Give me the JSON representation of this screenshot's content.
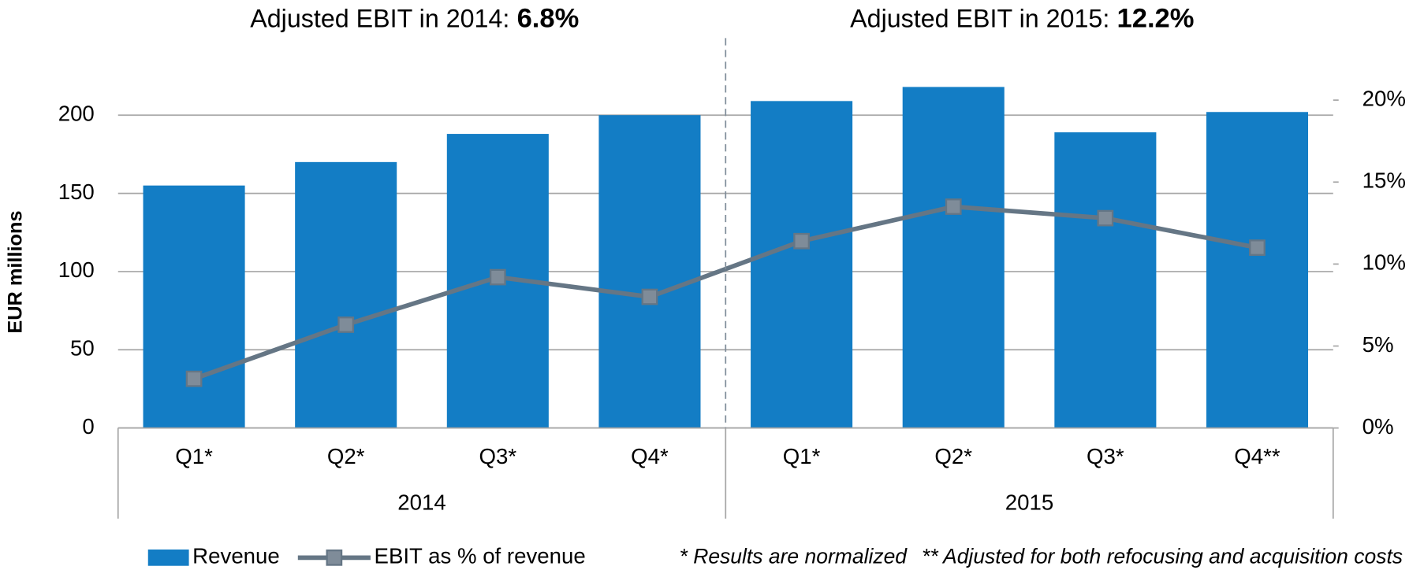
{
  "chart_data": {
    "type": "bar",
    "panels": [
      {
        "label": "2014",
        "title": "Adjusted EBIT in 2014:",
        "highlight": "6.8%"
      },
      {
        "label": "2015",
        "title": "Adjusted EBIT in 2015:",
        "highlight": "12.2%"
      }
    ],
    "categories": [
      "Q1*",
      "Q2*",
      "Q3*",
      "Q4*",
      "Q1*",
      "Q2*",
      "Q3*",
      "Q4**"
    ],
    "series": [
      {
        "name": "Revenue",
        "type": "bar",
        "color": "#137dc5",
        "values": [
          155,
          170,
          188,
          200,
          209,
          218,
          189,
          202
        ]
      },
      {
        "name": "EBIT as % of revenue",
        "type": "line",
        "axis": "y2",
        "color": "#657685",
        "values": [
          3.0,
          6.3,
          9.2,
          8.0,
          11.4,
          13.5,
          12.8,
          11.0
        ]
      }
    ],
    "ylabel": "EUR millions",
    "ylim": [
      0,
      262
    ],
    "yticks": [
      0,
      50,
      100,
      150,
      200
    ],
    "y2lim": [
      0,
      25
    ],
    "y2ticks": [
      {
        "value": 0,
        "label": "0%"
      },
      {
        "value": 5,
        "label": "5%"
      },
      {
        "value": 10,
        "label": "10%"
      },
      {
        "value": 15,
        "label": "15%"
      },
      {
        "value": 20,
        "label": "20%"
      }
    ],
    "grid": true,
    "legend": "bottom",
    "footnotes": [
      "* Results are normalized",
      "** Adjusted for both refocusing and acquisition costs"
    ]
  }
}
